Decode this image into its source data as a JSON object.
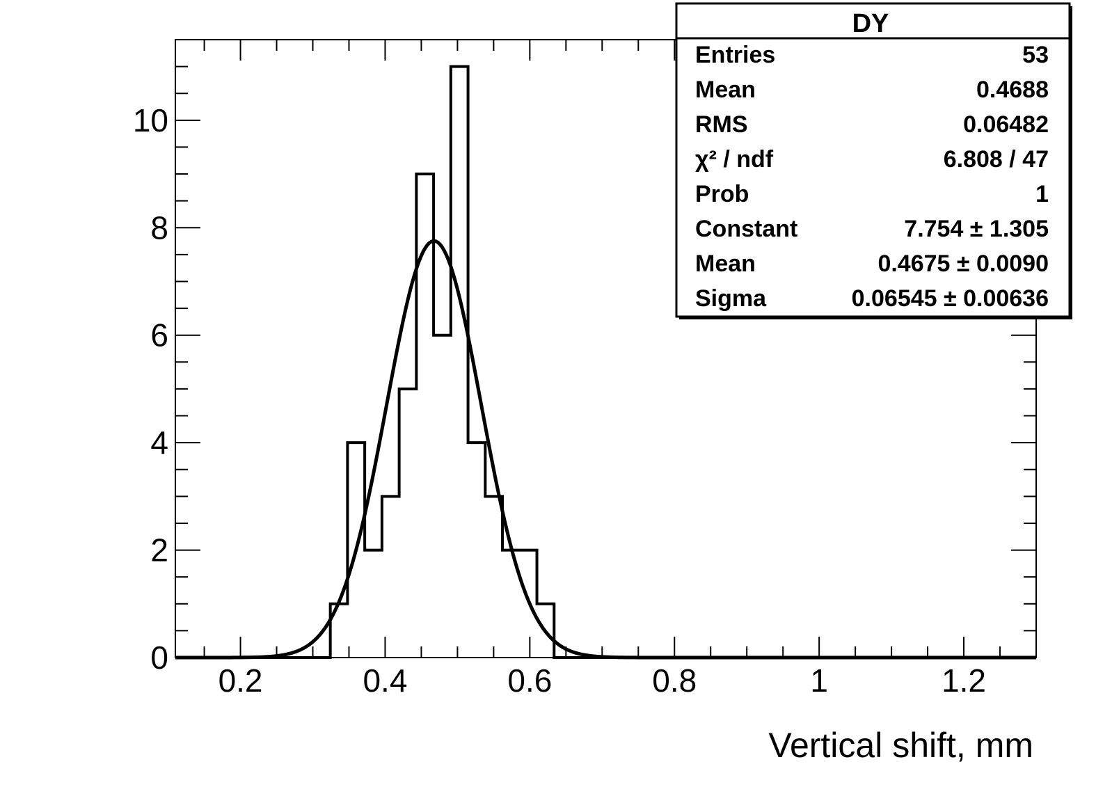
{
  "chart_data": {
    "type": "bar",
    "title": "",
    "xlabel": "Vertical shift, mm",
    "ylabel": "",
    "xlim": [
      0.11,
      1.3
    ],
    "ylim": [
      0,
      11.5
    ],
    "x_ticks": [
      0.2,
      0.4,
      0.6,
      0.8,
      1,
      1.2
    ],
    "x_tick_labels": [
      "0.2",
      "0.4",
      "0.6",
      "0.8",
      "1",
      "1.2"
    ],
    "y_ticks": [
      0,
      2,
      4,
      6,
      8,
      10
    ],
    "y_tick_labels": [
      "0",
      "2",
      "4",
      "6",
      "8",
      "10"
    ],
    "grid": false,
    "histogram": {
      "bin_edges": [
        0.11,
        0.1338,
        0.1576,
        0.1814,
        0.2052,
        0.229,
        0.2528,
        0.2766,
        0.3004,
        0.3242,
        0.348,
        0.3718,
        0.3956,
        0.4194,
        0.4432,
        0.467,
        0.4908,
        0.5146,
        0.5384,
        0.5622,
        0.586,
        0.6098,
        0.6336,
        0.6574,
        0.6812,
        0.705,
        0.7288,
        0.7526,
        0.7764,
        0.8002,
        0.824,
        0.8478,
        0.8716,
        0.8954,
        0.9192,
        0.943,
        0.9668,
        0.9906,
        1.0144,
        1.0382,
        1.062,
        1.0858,
        1.1096,
        1.1334,
        1.1572,
        1.181,
        1.2048,
        1.2286,
        1.2524,
        1.2762,
        1.3
      ],
      "counts": [
        0,
        0,
        0,
        0,
        0,
        0,
        0,
        0,
        0,
        1,
        4,
        2,
        3,
        5,
        9,
        6,
        11,
        4,
        3,
        2,
        2,
        1,
        0,
        0,
        0,
        0,
        0,
        0,
        0,
        0,
        0,
        0,
        0,
        0,
        0,
        0,
        0,
        0,
        0,
        0,
        0,
        0,
        0,
        0,
        0,
        0,
        0,
        0,
        0,
        0
      ]
    },
    "fit": {
      "function": "gaus",
      "constant": 7.754,
      "mean": 0.4675,
      "sigma": 0.06545
    },
    "stats_box": {
      "title": "DY",
      "placement": "top-right",
      "rows": [
        {
          "label": "Entries",
          "value": "53"
        },
        {
          "label": "Mean",
          "value": "0.4688"
        },
        {
          "label": "RMS",
          "value": "0.06482"
        },
        {
          "label": "χ² / ndf",
          "value": "6.808 / 47"
        },
        {
          "label": "Prob",
          "value": "1"
        },
        {
          "label": "Constant",
          "value": "7.754 ± 1.305"
        },
        {
          "label": "Mean",
          "value": "0.4675 ± 0.0090"
        },
        {
          "label": "Sigma",
          "value": "0.06545 ± 0.00636"
        }
      ]
    }
  }
}
